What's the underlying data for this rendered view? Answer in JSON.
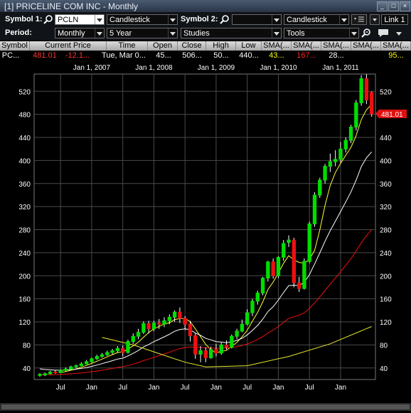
{
  "window": {
    "title": "[1] PRICELINE COM INC - Monthly"
  },
  "toolbar": {
    "symbol1_label": "Symbol 1:",
    "symbol1_value": "PCLN",
    "chart_type1": "Candlestick",
    "symbol2_label": "Symbol 2:",
    "symbol2_value": "",
    "chart_type2": "Candlestick",
    "link_label": "Link 1",
    "period_label": "Period:",
    "period_value": "Monthly",
    "range_value": "5 Year",
    "studies_value": "Studies",
    "tools_value": "Tools"
  },
  "quote_table": {
    "headers": [
      "Symbol",
      "Current Price",
      "Time",
      "Open",
      "Close",
      "High",
      "Low",
      "SMA(...",
      "SMA(...",
      "SMA(...",
      "SMA(...",
      "SMA(..."
    ],
    "row": [
      "PC...",
      "481.01",
      "-12.1...",
      "Tue, Mar 0...",
      "45...",
      "506...",
      "50...",
      "440...",
      "43...",
      "167...",
      "28...",
      "",
      "95..."
    ],
    "colors": {
      "negative": "#ff3030",
      "sma_yellow": "#ffff00",
      "sma_red": "#ff2020"
    }
  },
  "chart_data": {
    "type": "candlestick",
    "top_axis_labels": [
      "Jan 1, 2007",
      "Jan 1, 2008",
      "Jan 1, 2009",
      "Jan 1, 2010",
      "Jan 1, 2011"
    ],
    "bottom_axis_labels": [
      "Jul",
      "Jan",
      "Jul",
      "Jan",
      "Jul",
      "Jan",
      "Jul",
      "Jan",
      "Jul",
      "Jan"
    ],
    "y_ticks": [
      40,
      80,
      120,
      160,
      200,
      240,
      280,
      320,
      360,
      400,
      440,
      480,
      520
    ],
    "ylim": [
      20,
      550
    ],
    "current_price_label": "481.01",
    "colors": {
      "up": "#00dd00",
      "down": "#ee1010",
      "sma_short": "#ffff33",
      "sma_mid": "#ffffff",
      "sma_long": "#ee1010",
      "sma_longest": "#e8e830",
      "grid": "#4a4a4a"
    },
    "candles": [
      {
        "o": 27,
        "c": 29,
        "h": 31,
        "l": 25
      },
      {
        "o": 28,
        "c": 30,
        "h": 32,
        "l": 26
      },
      {
        "o": 30,
        "c": 33,
        "h": 35,
        "l": 29
      },
      {
        "o": 33,
        "c": 32,
        "h": 36,
        "l": 30
      },
      {
        "o": 32,
        "c": 36,
        "h": 38,
        "l": 31
      },
      {
        "o": 36,
        "c": 38,
        "h": 41,
        "l": 34
      },
      {
        "o": 38,
        "c": 42,
        "h": 44,
        "l": 37
      },
      {
        "o": 42,
        "c": 44,
        "h": 46,
        "l": 40
      },
      {
        "o": 44,
        "c": 47,
        "h": 50,
        "l": 43
      },
      {
        "o": 47,
        "c": 51,
        "h": 54,
        "l": 46
      },
      {
        "o": 51,
        "c": 56,
        "h": 58,
        "l": 49
      },
      {
        "o": 56,
        "c": 60,
        "h": 63,
        "l": 54
      },
      {
        "o": 60,
        "c": 63,
        "h": 66,
        "l": 58
      },
      {
        "o": 63,
        "c": 67,
        "h": 70,
        "l": 61
      },
      {
        "o": 67,
        "c": 70,
        "h": 73,
        "l": 64
      },
      {
        "o": 70,
        "c": 74,
        "h": 78,
        "l": 67
      },
      {
        "o": 74,
        "c": 67,
        "h": 79,
        "l": 60
      },
      {
        "o": 67,
        "c": 86,
        "h": 89,
        "l": 65
      },
      {
        "o": 86,
        "c": 95,
        "h": 100,
        "l": 82
      },
      {
        "o": 95,
        "c": 102,
        "h": 108,
        "l": 90
      },
      {
        "o": 102,
        "c": 117,
        "h": 121,
        "l": 99
      },
      {
        "o": 117,
        "c": 108,
        "h": 122,
        "l": 100
      },
      {
        "o": 108,
        "c": 118,
        "h": 122,
        "l": 104
      },
      {
        "o": 118,
        "c": 116,
        "h": 125,
        "l": 108
      },
      {
        "o": 116,
        "c": 122,
        "h": 128,
        "l": 111
      },
      {
        "o": 122,
        "c": 128,
        "h": 133,
        "l": 116
      },
      {
        "o": 128,
        "c": 137,
        "h": 140,
        "l": 120
      },
      {
        "o": 137,
        "c": 126,
        "h": 145,
        "l": 118
      },
      {
        "o": 126,
        "c": 116,
        "h": 130,
        "l": 106
      },
      {
        "o": 116,
        "c": 96,
        "h": 122,
        "l": 86
      },
      {
        "o": 96,
        "c": 64,
        "h": 100,
        "l": 56
      },
      {
        "o": 64,
        "c": 70,
        "h": 78,
        "l": 50
      },
      {
        "o": 70,
        "c": 58,
        "h": 76,
        "l": 50
      },
      {
        "o": 58,
        "c": 72,
        "h": 77,
        "l": 56
      },
      {
        "o": 72,
        "c": 66,
        "h": 82,
        "l": 60
      },
      {
        "o": 66,
        "c": 80,
        "h": 84,
        "l": 63
      },
      {
        "o": 80,
        "c": 76,
        "h": 88,
        "l": 72
      },
      {
        "o": 76,
        "c": 95,
        "h": 98,
        "l": 74
      },
      {
        "o": 95,
        "c": 104,
        "h": 108,
        "l": 90
      },
      {
        "o": 104,
        "c": 116,
        "h": 124,
        "l": 102
      },
      {
        "o": 116,
        "c": 136,
        "h": 142,
        "l": 114
      },
      {
        "o": 136,
        "c": 156,
        "h": 160,
        "l": 130
      },
      {
        "o": 156,
        "c": 170,
        "h": 174,
        "l": 150
      },
      {
        "o": 170,
        "c": 196,
        "h": 198,
        "l": 166
      },
      {
        "o": 196,
        "c": 224,
        "h": 226,
        "l": 190
      },
      {
        "o": 224,
        "c": 200,
        "h": 230,
        "l": 195
      },
      {
        "o": 200,
        "c": 232,
        "h": 234,
        "l": 196
      },
      {
        "o": 232,
        "c": 256,
        "h": 262,
        "l": 226
      },
      {
        "o": 258,
        "c": 262,
        "h": 270,
        "l": 250
      },
      {
        "o": 262,
        "c": 188,
        "h": 266,
        "l": 180
      },
      {
        "o": 188,
        "c": 178,
        "h": 198,
        "l": 172
      },
      {
        "o": 178,
        "c": 225,
        "h": 230,
        "l": 176
      },
      {
        "o": 225,
        "c": 290,
        "h": 294,
        "l": 222
      },
      {
        "o": 290,
        "c": 340,
        "h": 345,
        "l": 285
      },
      {
        "o": 340,
        "c": 366,
        "h": 370,
        "l": 335
      },
      {
        "o": 366,
        "c": 390,
        "h": 394,
        "l": 360
      },
      {
        "o": 390,
        "c": 398,
        "h": 412,
        "l": 380
      },
      {
        "o": 398,
        "c": 402,
        "h": 418,
        "l": 390
      },
      {
        "o": 402,
        "c": 420,
        "h": 432,
        "l": 396
      },
      {
        "o": 420,
        "c": 435,
        "h": 440,
        "l": 414
      },
      {
        "o": 435,
        "c": 458,
        "h": 462,
        "l": 430
      },
      {
        "o": 458,
        "c": 500,
        "h": 505,
        "l": 452
      },
      {
        "o": 500,
        "c": 542,
        "h": 548,
        "l": 495
      },
      {
        "o": 542,
        "c": 505,
        "h": 550,
        "l": 498
      },
      {
        "o": 518,
        "c": 481,
        "h": 520,
        "l": 476
      }
    ]
  }
}
